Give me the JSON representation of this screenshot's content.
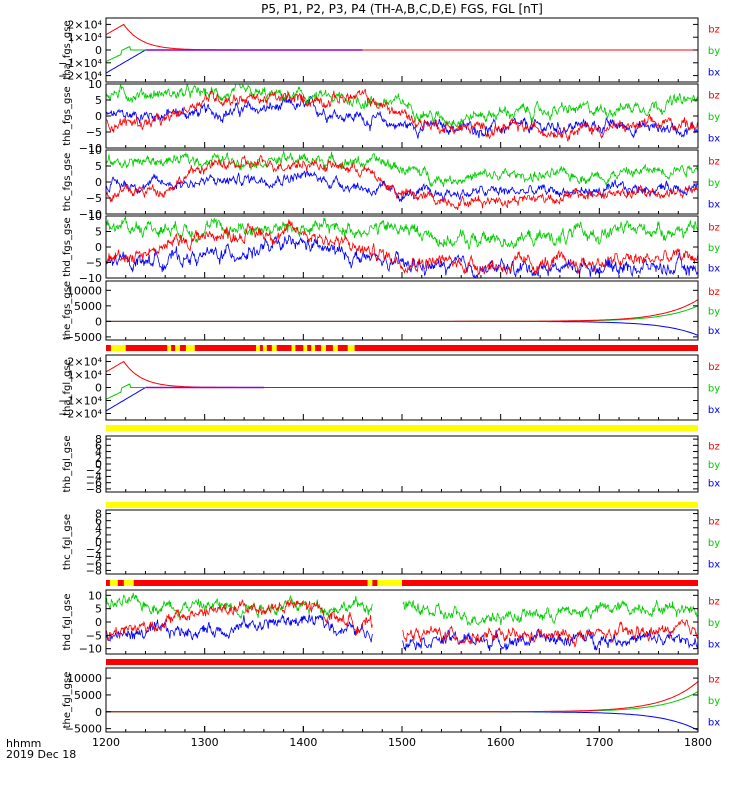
{
  "title": "P5, P1, P2, P3, P4 (TH-A,B,C,D,E) FGS, FGL [nT]",
  "footer": {
    "unit_label": "hhmm",
    "date_label": "2019 Dec 18"
  },
  "colors": {
    "bz": "#ff0000",
    "by": "#00cc00",
    "bx": "#0000ff",
    "flag_red": "#ff0000",
    "flag_yellow": "#ffff00",
    "purple": "#9900cc"
  },
  "chart_data": {
    "type": "line",
    "title": "P5, P1, P2, P3, P4 (TH-A,B,C,D,E) FGS, FGL [nT]",
    "xlabel": "hhmm",
    "xlim": [
      1200,
      1800
    ],
    "x_ticks": [
      "1200",
      "1300",
      "1400",
      "1500",
      "1600",
      "1700",
      "1800"
    ],
    "legend_placement": "right",
    "panels": [
      {
        "ylabel": "tha_fgs_gse",
        "ylim": [
          -25000,
          25000
        ],
        "y_ticks": [
          {
            "v": 20000,
            "label": "2×10⁴"
          },
          {
            "v": 10000,
            "label": "1×10⁴"
          },
          {
            "v": 0,
            "label": "0"
          },
          {
            "v": -10000,
            "label": "−1×10⁴"
          },
          {
            "v": -20000,
            "label": "−2×10⁴"
          }
        ],
        "series": [
          {
            "name": "bz"
          },
          {
            "name": "by"
          },
          {
            "name": "bx"
          }
        ],
        "shape": "decay",
        "peak": 20000,
        "tau": 18,
        "end": 1460
      },
      {
        "ylabel": "thb_fgs_gse",
        "ylim": [
          -10,
          10
        ],
        "y_ticks": [
          {
            "v": 10,
            "label": "10"
          },
          {
            "v": 5,
            "label": "5"
          },
          {
            "v": 0,
            "label": "0"
          },
          {
            "v": -5,
            "label": "−5"
          },
          {
            "v": -10,
            "label": "−10"
          }
        ],
        "series": [
          {
            "name": "bz"
          },
          {
            "name": "by"
          },
          {
            "name": "bx"
          }
        ],
        "shape": "noisy",
        "levels": {
          "by": [
            [
              1200,
              7
            ],
            [
              1300,
              7
            ],
            [
              1400,
              6
            ],
            [
              1500,
              4
            ],
            [
              1540,
              -1
            ],
            [
              1600,
              1
            ],
            [
              1700,
              2
            ],
            [
              1800,
              5
            ]
          ],
          "bz": [
            [
              1200,
              -2
            ],
            [
              1260,
              -2
            ],
            [
              1300,
              6
            ],
            [
              1400,
              5
            ],
            [
              1460,
              6
            ],
            [
              1480,
              3
            ],
            [
              1520,
              -2
            ],
            [
              1560,
              -4
            ],
            [
              1700,
              -4
            ],
            [
              1800,
              -2
            ]
          ],
          "bx": [
            [
              1200,
              0
            ],
            [
              1300,
              1
            ],
            [
              1400,
              3
            ],
            [
              1450,
              0
            ],
            [
              1500,
              -3
            ],
            [
              1600,
              -4
            ],
            [
              1700,
              -3
            ],
            [
              1800,
              -4
            ]
          ]
        },
        "noise": 1.3
      },
      {
        "ylabel": "thc_fgs_gse",
        "ylim": [
          -10,
          10
        ],
        "y_ticks": [
          {
            "v": 10,
            "label": "10"
          },
          {
            "v": 5,
            "label": "5"
          },
          {
            "v": 0,
            "label": "0"
          },
          {
            "v": -5,
            "label": "−5"
          },
          {
            "v": -10,
            "label": "−10"
          }
        ],
        "series": [
          {
            "name": "bz"
          },
          {
            "name": "by"
          },
          {
            "name": "bx"
          }
        ],
        "shape": "noisy",
        "levels": {
          "by": [
            [
              1200,
              6
            ],
            [
              1300,
              7
            ],
            [
              1400,
              7
            ],
            [
              1480,
              6
            ],
            [
              1540,
              1
            ],
            [
              1600,
              2
            ],
            [
              1700,
              2
            ],
            [
              1800,
              5
            ]
          ],
          "bz": [
            [
              1200,
              -4
            ],
            [
              1260,
              -2
            ],
            [
              1300,
              5
            ],
            [
              1400,
              6
            ],
            [
              1460,
              4
            ],
            [
              1500,
              -4
            ],
            [
              1560,
              -6
            ],
            [
              1700,
              -4
            ],
            [
              1800,
              -3
            ]
          ],
          "bx": [
            [
              1200,
              -1
            ],
            [
              1300,
              0
            ],
            [
              1400,
              2
            ],
            [
              1450,
              -1
            ],
            [
              1500,
              -4
            ],
            [
              1600,
              -3
            ],
            [
              1700,
              -3
            ],
            [
              1800,
              -1
            ]
          ]
        },
        "noise": 1.2
      },
      {
        "ylabel": "thd_fgs_gse",
        "ylim": [
          -10,
          10
        ],
        "y_ticks": [
          {
            "v": 10,
            "label": "10"
          },
          {
            "v": 5,
            "label": "5"
          },
          {
            "v": 0,
            "label": "0"
          },
          {
            "v": -5,
            "label": "−5"
          },
          {
            "v": -10,
            "label": "−10"
          }
        ],
        "series": [
          {
            "name": "bz"
          },
          {
            "name": "by"
          },
          {
            "name": "bx"
          }
        ],
        "shape": "noisy",
        "levels": {
          "by": [
            [
              1200,
              7
            ],
            [
              1300,
              6
            ],
            [
              1400,
              6
            ],
            [
              1500,
              6
            ],
            [
              1550,
              2
            ],
            [
              1650,
              3
            ],
            [
              1750,
              6
            ],
            [
              1800,
              5
            ]
          ],
          "bz": [
            [
              1200,
              -4
            ],
            [
              1260,
              0
            ],
            [
              1300,
              4
            ],
            [
              1400,
              5
            ],
            [
              1450,
              0
            ],
            [
              1500,
              -4
            ],
            [
              1600,
              -6
            ],
            [
              1700,
              -5
            ],
            [
              1800,
              -3
            ]
          ],
          "bx": [
            [
              1200,
              -5
            ],
            [
              1300,
              -3
            ],
            [
              1400,
              1
            ],
            [
              1450,
              -3
            ],
            [
              1500,
              -6
            ],
            [
              1600,
              -7
            ],
            [
              1700,
              -6
            ],
            [
              1800,
              -7
            ]
          ]
        },
        "noise": 1.6
      },
      {
        "ylabel": "the_fgs_gse",
        "ylim": [
          -6000,
          13000
        ],
        "y_ticks": [
          {
            "v": 10000,
            "label": "10000"
          },
          {
            "v": 5000,
            "label": "5000"
          },
          {
            "v": 0,
            "label": "0"
          },
          {
            "v": -5000,
            "label": "−5000"
          }
        ],
        "series": [
          {
            "name": "bz"
          },
          {
            "name": "by"
          },
          {
            "name": "bx"
          }
        ],
        "shape": "growth",
        "bz_end": 7000,
        "by_end": 5000,
        "bx_end": -4500,
        "tau": 35
      },
      {
        "ylabel": "tha_fgl_gse",
        "ylim": [
          -25000,
          25000
        ],
        "y_ticks": [
          {
            "v": 20000,
            "label": "2×10⁴"
          },
          {
            "v": 10000,
            "label": "1×10⁴"
          },
          {
            "v": 0,
            "label": "0"
          },
          {
            "v": -10000,
            "label": "−1×10⁴"
          },
          {
            "v": -20000,
            "label": "−2×10⁴"
          }
        ],
        "series": [
          {
            "name": "bz"
          },
          {
            "name": "by"
          },
          {
            "name": "bx"
          }
        ],
        "shape": "decay",
        "peak": 20000,
        "tau": 18,
        "end": 1360
      },
      {
        "ylabel": "thb_fgl_gse",
        "ylim": [
          -9,
          9
        ],
        "y_ticks": [
          {
            "v": 8,
            "label": "8"
          },
          {
            "v": 6,
            "label": "6"
          },
          {
            "v": 4,
            "label": "4"
          },
          {
            "v": 2,
            "label": "2"
          },
          {
            "v": 0,
            "label": "0"
          },
          {
            "v": -2,
            "label": "−2"
          },
          {
            "v": -4,
            "label": "−4"
          },
          {
            "v": -6,
            "label": "−6"
          },
          {
            "v": -8,
            "label": "−8"
          }
        ],
        "series": [
          {
            "name": "bz"
          },
          {
            "name": "by"
          },
          {
            "name": "bx"
          }
        ],
        "shape": "empty"
      },
      {
        "ylabel": "thc_fgl_gse",
        "ylim": [
          -9,
          9
        ],
        "y_ticks": [
          {
            "v": 8,
            "label": "8"
          },
          {
            "v": 6,
            "label": "6"
          },
          {
            "v": 4,
            "label": "4"
          },
          {
            "v": 2,
            "label": "2"
          },
          {
            "v": 0,
            "label": "0"
          },
          {
            "v": -2,
            "label": "−2"
          },
          {
            "v": -4,
            "label": "−4"
          },
          {
            "v": -6,
            "label": "−6"
          },
          {
            "v": -8,
            "label": "−8"
          }
        ],
        "series": [
          {
            "name": "bz"
          },
          {
            "name": "by"
          },
          {
            "name": "bx"
          }
        ],
        "shape": "empty"
      },
      {
        "ylabel": "thd_fgl_gse",
        "ylim": [
          -12,
          12
        ],
        "y_ticks": [
          {
            "v": 10,
            "label": "10"
          },
          {
            "v": 5,
            "label": "5"
          },
          {
            "v": 0,
            "label": "0"
          },
          {
            "v": -5,
            "label": "−5"
          },
          {
            "v": -10,
            "label": "−10"
          }
        ],
        "series": [
          {
            "name": "bz"
          },
          {
            "name": "by"
          },
          {
            "name": "bx"
          }
        ],
        "shape": "noisy",
        "gap": [
          1470,
          1500
        ],
        "levels": {
          "by": [
            [
              1200,
              7
            ],
            [
              1300,
              6
            ],
            [
              1400,
              6
            ],
            [
              1500,
              6
            ],
            [
              1550,
              2
            ],
            [
              1650,
              3
            ],
            [
              1750,
              6
            ],
            [
              1800,
              5
            ]
          ],
          "bz": [
            [
              1200,
              -4
            ],
            [
              1260,
              0
            ],
            [
              1300,
              4
            ],
            [
              1400,
              6
            ],
            [
              1450,
              0
            ],
            [
              1500,
              -4
            ],
            [
              1600,
              -6
            ],
            [
              1700,
              -5
            ],
            [
              1800,
              -3
            ]
          ],
          "bx": [
            [
              1200,
              -5
            ],
            [
              1300,
              -3
            ],
            [
              1400,
              1
            ],
            [
              1450,
              -3
            ],
            [
              1500,
              -6
            ],
            [
              1600,
              -7
            ],
            [
              1700,
              -6
            ],
            [
              1800,
              -7
            ]
          ]
        },
        "noise": 1.7
      },
      {
        "ylabel": "the_fgl_gse",
        "ylim": [
          -6000,
          13000
        ],
        "y_ticks": [
          {
            "v": 10000,
            "label": "10000"
          },
          {
            "v": 5000,
            "label": "5000"
          },
          {
            "v": 0,
            "label": "0"
          },
          {
            "v": -5000,
            "label": "−5000"
          }
        ],
        "series": [
          {
            "name": "bz"
          },
          {
            "name": "by"
          },
          {
            "name": "bx"
          }
        ],
        "shape": "growth",
        "bz_end": 9000,
        "by_end": 6000,
        "bx_end": -5500,
        "tau": 35
      }
    ],
    "flag_bars": [
      {
        "after_panel": 4,
        "segments": [
          {
            "from": 1200,
            "to": 1800,
            "color": "flag_red"
          },
          {
            "from": 1205,
            "to": 1220,
            "color": "flag_yellow"
          },
          {
            "from": 1262,
            "to": 1266,
            "color": "flag_yellow"
          },
          {
            "from": 1270,
            "to": 1275,
            "color": "flag_yellow"
          },
          {
            "from": 1281,
            "to": 1290,
            "color": "flag_yellow"
          },
          {
            "from": 1352,
            "to": 1356,
            "color": "flag_yellow"
          },
          {
            "from": 1359,
            "to": 1363,
            "color": "flag_yellow"
          },
          {
            "from": 1368,
            "to": 1373,
            "color": "flag_yellow"
          },
          {
            "from": 1388,
            "to": 1392,
            "color": "flag_yellow"
          },
          {
            "from": 1400,
            "to": 1404,
            "color": "flag_yellow"
          },
          {
            "from": 1408,
            "to": 1412,
            "color": "flag_yellow"
          },
          {
            "from": 1418,
            "to": 1423,
            "color": "flag_yellow"
          },
          {
            "from": 1430,
            "to": 1435,
            "color": "flag_yellow"
          },
          {
            "from": 1445,
            "to": 1452,
            "color": "flag_yellow"
          }
        ]
      },
      {
        "after_panel": 5,
        "segments": [
          {
            "from": 1200,
            "to": 1800,
            "color": "flag_yellow"
          }
        ]
      },
      {
        "after_panel": 6,
        "segments": [
          {
            "from": 1200,
            "to": 1800,
            "color": "flag_yellow"
          }
        ]
      },
      {
        "after_panel": 7,
        "segments": [
          {
            "from": 1200,
            "to": 1800,
            "color": "flag_red"
          },
          {
            "from": 1204,
            "to": 1212,
            "color": "flag_yellow"
          },
          {
            "from": 1218,
            "to": 1228,
            "color": "flag_yellow"
          },
          {
            "from": 1465,
            "to": 1470,
            "color": "flag_yellow"
          },
          {
            "from": 1475,
            "to": 1500,
            "color": "flag_yellow"
          }
        ]
      },
      {
        "after_panel": 8,
        "segments": [
          {
            "from": 1200,
            "to": 1800,
            "color": "flag_red"
          }
        ]
      }
    ]
  }
}
